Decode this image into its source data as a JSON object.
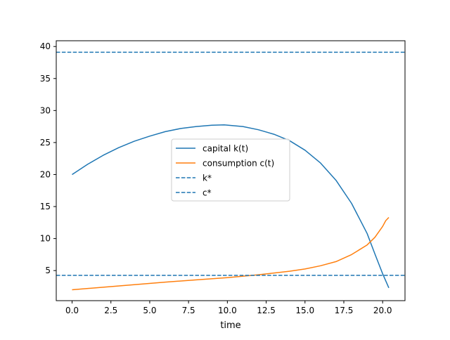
{
  "chart_data": {
    "type": "line",
    "xlabel": "time",
    "ylabel": "",
    "xlim": [
      -1.02,
      21.44
    ],
    "ylim": [
      0.3,
      40.9
    ],
    "x_ticks": [
      0,
      2.5,
      5,
      7.5,
      10,
      12.5,
      15,
      17.5,
      20
    ],
    "x_tick_labels": [
      "0.0",
      "2.5",
      "5.0",
      "7.5",
      "10.0",
      "12.5",
      "15.0",
      "17.5",
      "20.0"
    ],
    "y_ticks": [
      5,
      10,
      15,
      20,
      25,
      30,
      35,
      40
    ],
    "y_tick_labels": [
      "5",
      "10",
      "15",
      "20",
      "25",
      "30",
      "35",
      "40"
    ],
    "grid": false,
    "legend_position": "center",
    "series": [
      {
        "name": "capital k(t)",
        "color": "#1f77b4",
        "style": "solid",
        "x": [
          0,
          1,
          2,
          3,
          4,
          5,
          6,
          7,
          8,
          9,
          9.8,
          11,
          12,
          13,
          14,
          15,
          16,
          17,
          18,
          19,
          19.5,
          20,
          20.4
        ],
        "values": [
          20.0,
          21.6,
          23.0,
          24.2,
          25.2,
          26.0,
          26.7,
          27.2,
          27.5,
          27.7,
          27.75,
          27.5,
          27.0,
          26.3,
          25.3,
          23.8,
          21.8,
          19.1,
          15.5,
          10.8,
          7.6,
          4.5,
          2.3
        ]
      },
      {
        "name": "consumption c(t)",
        "color": "#ff7f0e",
        "style": "solid",
        "x": [
          0,
          2,
          4,
          6,
          8,
          10,
          12,
          14,
          15,
          16,
          17,
          18,
          19,
          19.5,
          20,
          20.2,
          20.4
        ],
        "values": [
          2.0,
          2.4,
          2.8,
          3.2,
          3.55,
          3.9,
          4.35,
          4.9,
          5.25,
          5.75,
          6.4,
          7.5,
          9.0,
          10.2,
          11.9,
          12.8,
          13.3
        ]
      },
      {
        "name": "k*",
        "color": "#1f77b4",
        "style": "dashed",
        "hline": 39.1
      },
      {
        "name": "c*",
        "color": "#1f77b4",
        "style": "dashed",
        "hline": 4.25
      }
    ]
  }
}
